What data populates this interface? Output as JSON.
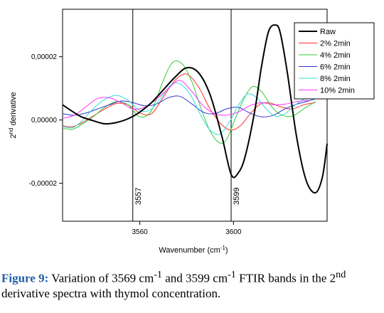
{
  "chart_data": {
    "type": "line",
    "xlabel": "Wavenumber (cm",
    "xlabel_sup": "-1",
    "xlabel_end": ")",
    "ylabel_prefix": "2",
    "ylabel_sup": "nd",
    "ylabel_rest": " derivative",
    "xlim": [
      3527,
      3640
    ],
    "ylim": [
      -3.2e-05,
      3.5e-05
    ],
    "x_ticks": [
      {
        "value": 3560,
        "label": "3560"
      },
      {
        "value": 3600,
        "label": "3600"
      }
    ],
    "y_ticks": [
      {
        "value": 2e-05,
        "label": "0,00002"
      },
      {
        "value": 0.0,
        "label": "0,00000"
      },
      {
        "value": -2e-05,
        "label": "-0,00002"
      }
    ],
    "reference_lines": [
      {
        "x": 3557,
        "label": "3557"
      },
      {
        "x": 3599,
        "label": "3599"
      }
    ],
    "legend_placement": "top-right",
    "series": [
      {
        "name": "Raw",
        "color": "#000000",
        "x": [
          3527,
          3531,
          3535,
          3540,
          3545,
          3550,
          3555,
          3560,
          3565,
          3570,
          3575,
          3580,
          3585,
          3590,
          3595,
          3599,
          3602,
          3605,
          3609,
          3612,
          3615,
          3618,
          3620,
          3623,
          3627,
          3631,
          3635,
          3638,
          3640
        ],
        "y": [
          4.8e-06,
          2.8e-06,
          1e-06,
          -2e-07,
          -1.2e-06,
          -8e-07,
          4e-07,
          2.5e-06,
          5.5e-06,
          9.5e-06,
          1.35e-05,
          1.65e-05,
          1.5e-05,
          8e-06,
          -5e-06,
          -1.72e-05,
          -1.68e-05,
          -1.15e-05,
          2.5e-06,
          1.7e-05,
          2.8e-05,
          3e-05,
          2.75e-05,
          1.5e-05,
          -5.5e-06,
          -1.9e-05,
          -2.3e-05,
          -1.8e-05,
          -7.5e-06
        ]
      },
      {
        "name": "2% 2min",
        "color": "#ff3030",
        "x": [
          3527,
          3531,
          3535,
          3540,
          3545,
          3550,
          3555,
          3560,
          3565,
          3570,
          3575,
          3580,
          3585,
          3590,
          3595,
          3599,
          3603,
          3607,
          3611,
          3615,
          3620,
          3625,
          3630,
          3635
        ],
        "y": [
          -1.8e-06,
          -2.2e-06,
          -1e-06,
          1.2e-06,
          3.5e-06,
          5.2e-06,
          4.8e-06,
          2.2e-06,
          2e-06,
          7.2e-06,
          1.25e-05,
          1.45e-05,
          1.05e-05,
          3.5e-06,
          -1.5e-06,
          -3.2e-06,
          -1.8e-06,
          1.8e-06,
          4.8e-06,
          5.5e-06,
          4.2e-06,
          3.5e-06,
          4.8e-06,
          5.5e-06
        ]
      },
      {
        "name": "4% 2min",
        "color": "#33cc33",
        "x": [
          3527,
          3531,
          3535,
          3540,
          3545,
          3550,
          3555,
          3560,
          3565,
          3570,
          3574,
          3578,
          3582,
          3586,
          3590,
          3594,
          3597,
          3600,
          3604,
          3608,
          3612,
          3616,
          3620,
          3625,
          3630,
          3635
        ],
        "y": [
          -2.5e-06,
          -3e-06,
          -1.5e-06,
          1e-06,
          4e-06,
          5.8e-06,
          4.8e-06,
          1e-06,
          3e-06,
          1.25e-05,
          1.82e-05,
          1.78e-05,
          1.25e-05,
          4e-06,
          -3.5e-06,
          -7.2e-06,
          -6.2e-06,
          -1e-06,
          6e-06,
          1.05e-05,
          9e-06,
          4.5e-06,
          1.8e-06,
          1.2e-06,
          3.5e-06,
          5.8e-06
        ]
      },
      {
        "name": "6% 2min",
        "color": "#3333cc",
        "x": [
          3527,
          3532,
          3537,
          3542,
          3547,
          3552,
          3557,
          3562,
          3567,
          3572,
          3577,
          3582,
          3587,
          3592,
          3597,
          3602,
          3607,
          3612,
          3617,
          3622,
          3627,
          3632,
          3637
        ],
        "y": [
          2e-06,
          1.5e-06,
          2.2e-06,
          3.5e-06,
          4.8e-06,
          6e-06,
          5.5e-06,
          4.5e-06,
          5e-06,
          7e-06,
          7.5e-06,
          5.2e-06,
          2.5e-06,
          2e-06,
          3.5e-06,
          4e-06,
          2.2e-06,
          1e-06,
          1.5e-06,
          3.5e-06,
          5e-06,
          6e-06,
          7.2e-06
        ]
      },
      {
        "name": "8% 2min",
        "color": "#33dddd",
        "x": [
          3527,
          3531,
          3535,
          3540,
          3545,
          3550,
          3555,
          3560,
          3565,
          3570,
          3574,
          3578,
          3582,
          3586,
          3590,
          3594,
          3598,
          3602,
          3606,
          3610,
          3614,
          3618,
          3622,
          3626,
          3630,
          3635
        ],
        "y": [
          -2e-06,
          -2.5e-06,
          -5e-07,
          3.5e-06,
          6.5e-06,
          7.8e-06,
          6.2e-06,
          3e-06,
          3.5e-06,
          8e-06,
          1.15e-05,
          1.1e-05,
          7.5e-06,
          1.5e-06,
          -3.2e-06,
          -4.5e-06,
          -1e-06,
          4.5e-06,
          8.2e-06,
          7e-06,
          3.5e-06,
          1.2e-06,
          2e-06,
          4.5e-06,
          6.5e-06,
          7.5e-06
        ]
      },
      {
        "name": "10% 2min",
        "color": "#ff33ff",
        "x": [
          3527,
          3532,
          3537,
          3542,
          3547,
          3552,
          3557,
          3562,
          3567,
          3572,
          3577,
          3582,
          3587,
          3592,
          3597,
          3602,
          3607,
          3612,
          3617,
          3622,
          3627,
          3632
        ],
        "y": [
          5e-07,
          1.5e-06,
          4.2e-06,
          6.8e-06,
          7e-06,
          5.5e-06,
          3.5e-06,
          4e-06,
          6.5e-06,
          9.8e-06,
          1.25e-05,
          9.2e-06,
          4.5e-06,
          2e-06,
          1.5e-06,
          2.5e-06,
          4.5e-06,
          5.5e-06,
          4.8e-06,
          5e-06,
          5.8e-06,
          6.2e-06
        ]
      }
    ]
  },
  "caption": {
    "label": "Figure 9:",
    "part1": " Variation of 3569 cm",
    "sup1": "-1",
    "part2": " and 3599 cm",
    "sup2": "-1",
    "part3": " FTIR bands in the 2",
    "sup3": "nd",
    "part4": " derivative spectra with thymol concentration."
  }
}
